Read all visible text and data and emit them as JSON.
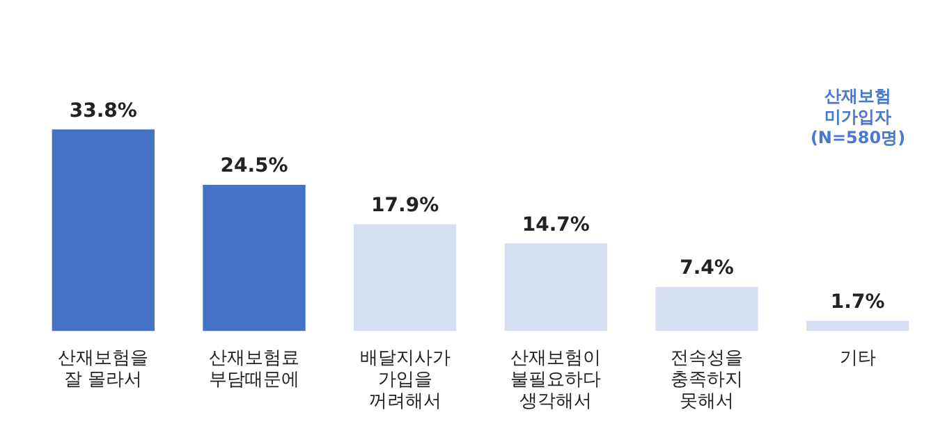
{
  "chart_data": {
    "type": "bar",
    "categories": [
      "산재보험을\n잘 몰라서",
      "산재보험료\n부담때문에",
      "배달지사가\n가입을\n꺼려해서",
      "산재보험이\n불필요하다\n생각해서",
      "전속성을\n충족하지\n못해서",
      "기타"
    ],
    "values": [
      33.8,
      24.5,
      17.9,
      14.7,
      7.4,
      1.7
    ],
    "value_labels": [
      "33.8%",
      "24.5%",
      "17.9%",
      "14.7%",
      "7.4%",
      "1.7%"
    ],
    "colors": [
      "#4472c4",
      "#4472c4",
      "#d6dff1",
      "#d6dff1",
      "#d6dff1",
      "#d6dff1"
    ],
    "annotations": [
      "산재보험\n미가입자\n(N=580명)"
    ],
    "grid": false,
    "legend": false
  }
}
